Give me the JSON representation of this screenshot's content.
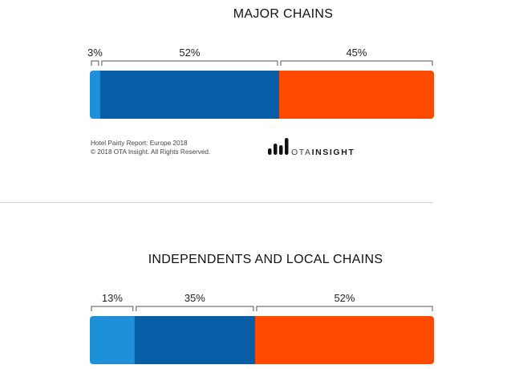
{
  "chart_data": [
    {
      "type": "bar",
      "orientation": "horizontal-stacked",
      "title": "MAJOR CHAINS",
      "segments": [
        {
          "label": "3%",
          "value": 3,
          "color": "#1e8fd9"
        },
        {
          "label": "52%",
          "value": 52,
          "color": "#085ea6"
        },
        {
          "label": "45%",
          "value": 45,
          "color": "#fe4a01"
        }
      ]
    },
    {
      "type": "bar",
      "orientation": "horizontal-stacked",
      "title": "INDEPENDENTS AND LOCAL CHAINS",
      "segments": [
        {
          "label": "13%",
          "value": 13,
          "color": "#1e8fd9"
        },
        {
          "label": "35%",
          "value": 35,
          "color": "#085ea6"
        },
        {
          "label": "52%",
          "value": 52,
          "color": "#fe4a01"
        }
      ]
    }
  ],
  "footer": {
    "source_line": "Hotel Pairty Report: Europe 2018",
    "copyright_line": "© 2018 OTA Insight. All Rights Reserved."
  },
  "logo": {
    "icon": "bar-graph-logo-icon",
    "text_light": "OTA",
    "text_bold": "INSIGHT",
    "color": "#111111"
  }
}
